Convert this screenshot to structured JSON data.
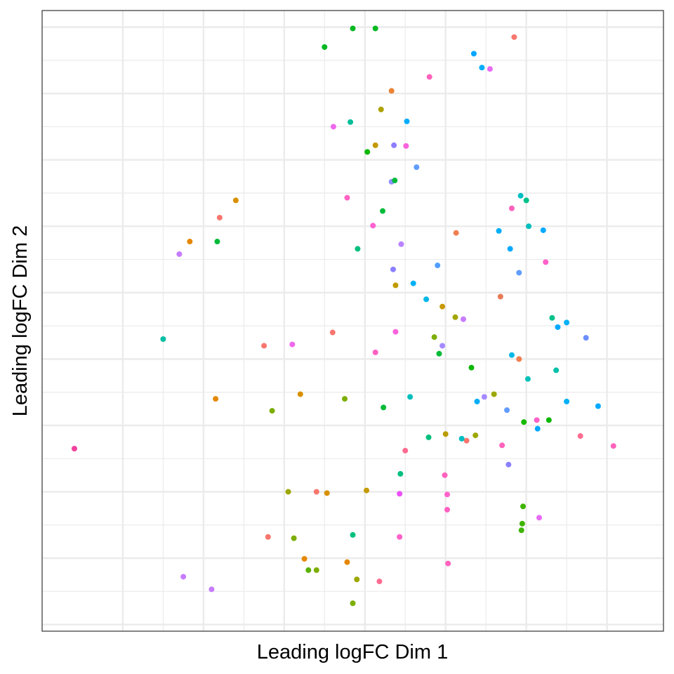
{
  "chart_data": {
    "type": "scatter",
    "title": "",
    "xlabel": "Leading logFC Dim 1",
    "ylabel": "Leading logFC Dim 2",
    "xlim": [
      -4.5,
      3.2
    ],
    "ylim": [
      -4.5,
      4.85
    ],
    "x_gridlines": [
      -3.5,
      -2.5,
      -1.5,
      -0.5,
      0.5,
      1.5,
      2.5
    ],
    "y_gridlines": [
      -4.4,
      -3.4,
      -2.4,
      -1.4,
      -0.4,
      0.6,
      1.6,
      2.6,
      3.6,
      4.6
    ],
    "grid": true,
    "legend": "none",
    "points": [
      {
        "x": -4.1,
        "y": -1.75,
        "color": "#F2429F"
      },
      {
        "x": -1.0,
        "y": 4.3,
        "color": "#00B81F"
      },
      {
        "x": -0.65,
        "y": 4.58,
        "color": "#00B81F"
      },
      {
        "x": -0.37,
        "y": 4.58,
        "color": "#00B81F"
      },
      {
        "x": 0.85,
        "y": 4.2,
        "color": "#00A5FF"
      },
      {
        "x": 0.95,
        "y": 3.99,
        "color": "#00ADFA"
      },
      {
        "x": 1.05,
        "y": 3.97,
        "color": "#E76BF3"
      },
      {
        "x": 1.35,
        "y": 4.45,
        "color": "#F8766D"
      },
      {
        "x": 0.3,
        "y": 3.85,
        "color": "#FF62BC"
      },
      {
        "x": -0.17,
        "y": 3.64,
        "color": "#EB8335"
      },
      {
        "x": -0.3,
        "y": 3.36,
        "color": "#AEA200"
      },
      {
        "x": -0.89,
        "y": 3.1,
        "color": "#EF67EB"
      },
      {
        "x": -0.68,
        "y": 3.17,
        "color": "#00BE99"
      },
      {
        "x": 0.02,
        "y": 3.18,
        "color": "#00ACFC"
      },
      {
        "x": -0.37,
        "y": 2.82,
        "color": "#C49A00"
      },
      {
        "x": -0.47,
        "y": 2.72,
        "color": "#0CB702"
      },
      {
        "x": -0.14,
        "y": 2.82,
        "color": "#8D7EFF"
      },
      {
        "x": 0.01,
        "y": 2.81,
        "color": "#F962DD"
      },
      {
        "x": 0.14,
        "y": 2.49,
        "color": "#619CFF"
      },
      {
        "x": -0.17,
        "y": 2.27,
        "color": "#8F91FF"
      },
      {
        "x": -0.13,
        "y": 2.29,
        "color": "#00BA38"
      },
      {
        "x": -0.72,
        "y": 2.03,
        "color": "#FF61C3"
      },
      {
        "x": -2.1,
        "y": 1.99,
        "color": "#D89000"
      },
      {
        "x": -2.3,
        "y": 1.73,
        "color": "#F8766D"
      },
      {
        "x": -0.28,
        "y": 1.83,
        "color": "#00BA38"
      },
      {
        "x": -0.4,
        "y": 1.61,
        "color": "#FD61D1"
      },
      {
        "x": -2.67,
        "y": 1.37,
        "color": "#E58700"
      },
      {
        "x": -2.33,
        "y": 1.37,
        "color": "#00BA38"
      },
      {
        "x": -2.8,
        "y": 1.18,
        "color": "#C77CFF"
      },
      {
        "x": -0.59,
        "y": 1.26,
        "color": "#00BF7D"
      },
      {
        "x": -0.05,
        "y": 1.33,
        "color": "#B983FF"
      },
      {
        "x": -0.15,
        "y": 0.95,
        "color": "#8B80FF"
      },
      {
        "x": -0.12,
        "y": 0.71,
        "color": "#C09B00"
      },
      {
        "x": 0.1,
        "y": 0.74,
        "color": "#00B0F6"
      },
      {
        "x": 1.43,
        "y": 2.06,
        "color": "#00BFC4"
      },
      {
        "x": 1.5,
        "y": 1.99,
        "color": "#00C08B"
      },
      {
        "x": 1.32,
        "y": 1.87,
        "color": "#FF62BC"
      },
      {
        "x": 0.63,
        "y": 1.5,
        "color": "#F17E4F"
      },
      {
        "x": 1.16,
        "y": 1.53,
        "color": "#00AEF4"
      },
      {
        "x": 1.53,
        "y": 1.6,
        "color": "#00BFBD"
      },
      {
        "x": 1.71,
        "y": 1.54,
        "color": "#00A9FF"
      },
      {
        "x": 1.74,
        "y": 1.06,
        "color": "#FF61C9"
      },
      {
        "x": 1.3,
        "y": 1.26,
        "color": "#00A9FF"
      },
      {
        "x": 0.4,
        "y": 1.01,
        "color": "#529EFF"
      },
      {
        "x": 1.41,
        "y": 0.9,
        "color": "#619CFF"
      },
      {
        "x": 0.26,
        "y": 0.5,
        "color": "#00B8E7"
      },
      {
        "x": 0.46,
        "y": 0.39,
        "color": "#C89900"
      },
      {
        "x": 0.62,
        "y": 0.23,
        "color": "#A3A500"
      },
      {
        "x": 0.72,
        "y": 0.2,
        "color": "#C77CFF"
      },
      {
        "x": 1.18,
        "y": 0.54,
        "color": "#E87B55"
      },
      {
        "x": 1.82,
        "y": 0.22,
        "color": "#00C08B"
      },
      {
        "x": 2.0,
        "y": 0.15,
        "color": "#00B0F6"
      },
      {
        "x": 1.89,
        "y": 0.08,
        "color": "#00A9FF"
      },
      {
        "x": 2.24,
        "y": -0.08,
        "color": "#6B8FFF"
      },
      {
        "x": 0.36,
        "y": -0.07,
        "color": "#7CAE00"
      },
      {
        "x": 0.42,
        "y": -0.32,
        "color": "#00BA38"
      },
      {
        "x": 0.46,
        "y": -0.2,
        "color": "#A58AFF"
      },
      {
        "x": -0.12,
        "y": 0.01,
        "color": "#F962DD"
      },
      {
        "x": -0.37,
        "y": -0.3,
        "color": "#FF61C3"
      },
      {
        "x": -1.75,
        "y": -0.2,
        "color": "#F8766D"
      },
      {
        "x": -1.4,
        "y": -0.18,
        "color": "#EF67EB"
      },
      {
        "x": -0.9,
        "y": 0.0,
        "color": "#F8766D"
      },
      {
        "x": -3.0,
        "y": -0.1,
        "color": "#00BFA4"
      },
      {
        "x": 0.82,
        "y": -0.53,
        "color": "#0CB702"
      },
      {
        "x": 1.32,
        "y": -0.34,
        "color": "#00B8E7"
      },
      {
        "x": 1.41,
        "y": -0.4,
        "color": "#F17E4F"
      },
      {
        "x": 1.52,
        "y": -0.7,
        "color": "#00C0B8"
      },
      {
        "x": 1.87,
        "y": -0.57,
        "color": "#00C1AA"
      },
      {
        "x": -2.35,
        "y": -1.0,
        "color": "#E58700"
      },
      {
        "x": -1.3,
        "y": -0.93,
        "color": "#D89000"
      },
      {
        "x": -0.75,
        "y": -1.0,
        "color": "#7CAE00"
      },
      {
        "x": -1.65,
        "y": -1.18,
        "color": "#7CAE00"
      },
      {
        "x": -0.27,
        "y": -1.13,
        "color": "#00BA38"
      },
      {
        "x": 0.06,
        "y": -0.97,
        "color": "#00BFBD"
      },
      {
        "x": 0.89,
        "y": -1.04,
        "color": "#00AEF4"
      },
      {
        "x": 0.98,
        "y": -0.97,
        "color": "#A58AFF"
      },
      {
        "x": 1.1,
        "y": -0.93,
        "color": "#9DA700"
      },
      {
        "x": 1.26,
        "y": -1.17,
        "color": "#619CFF"
      },
      {
        "x": 2.0,
        "y": -1.04,
        "color": "#00B0F6"
      },
      {
        "x": 2.39,
        "y": -1.11,
        "color": "#00A9FF"
      },
      {
        "x": 1.47,
        "y": -1.35,
        "color": "#16BA00"
      },
      {
        "x": 1.63,
        "y": -1.32,
        "color": "#FF61C9"
      },
      {
        "x": 1.78,
        "y": -1.32,
        "color": "#0CB702"
      },
      {
        "x": 1.64,
        "y": -1.45,
        "color": "#00A9FF"
      },
      {
        "x": 2.17,
        "y": -1.56,
        "color": "#FF6C91"
      },
      {
        "x": 2.58,
        "y": -1.71,
        "color": "#FF62BC"
      },
      {
        "x": 0.0,
        "y": -1.78,
        "color": "#FF6C91"
      },
      {
        "x": 0.29,
        "y": -1.58,
        "color": "#00BF7D"
      },
      {
        "x": 0.5,
        "y": -1.53,
        "color": "#B99B00"
      },
      {
        "x": 0.87,
        "y": -1.55,
        "color": "#9DA700"
      },
      {
        "x": 0.7,
        "y": -1.6,
        "color": "#00BFC4"
      },
      {
        "x": 0.76,
        "y": -1.63,
        "color": "#F8766D"
      },
      {
        "x": 1.2,
        "y": -1.7,
        "color": "#FF62BC"
      },
      {
        "x": 1.28,
        "y": -1.99,
        "color": "#8B80FF"
      },
      {
        "x": -0.06,
        "y": -2.13,
        "color": "#00BF7D"
      },
      {
        "x": 0.49,
        "y": -2.15,
        "color": "#FF62BC"
      },
      {
        "x": -1.45,
        "y": -2.4,
        "color": "#9DA700"
      },
      {
        "x": -1.1,
        "y": -2.4,
        "color": "#F8766D"
      },
      {
        "x": -0.97,
        "y": -2.42,
        "color": "#D89000"
      },
      {
        "x": -0.48,
        "y": -2.38,
        "color": "#C49A00"
      },
      {
        "x": -0.07,
        "y": -2.43,
        "color": "#EB4FF7"
      },
      {
        "x": 0.52,
        "y": -2.44,
        "color": "#FF61C9"
      },
      {
        "x": 1.46,
        "y": -2.62,
        "color": "#3EB400"
      },
      {
        "x": 1.66,
        "y": -2.79,
        "color": "#E76BF3"
      },
      {
        "x": 0.52,
        "y": -2.67,
        "color": "#FF61C3"
      },
      {
        "x": 1.45,
        "y": -2.88,
        "color": "#3EB400"
      },
      {
        "x": 1.44,
        "y": -2.98,
        "color": "#3EB400"
      },
      {
        "x": -1.7,
        "y": -3.08,
        "color": "#F8766D"
      },
      {
        "x": -1.38,
        "y": -3.1,
        "color": "#7CAE00"
      },
      {
        "x": -0.65,
        "y": -3.05,
        "color": "#00BF7D"
      },
      {
        "x": -0.07,
        "y": -3.08,
        "color": "#FF61C9"
      },
      {
        "x": -1.25,
        "y": -3.41,
        "color": "#E58700"
      },
      {
        "x": -0.72,
        "y": -3.46,
        "color": "#E58700"
      },
      {
        "x": 0.53,
        "y": -3.48,
        "color": "#FF62BC"
      },
      {
        "x": -1.2,
        "y": -3.58,
        "color": "#5AB000"
      },
      {
        "x": -1.1,
        "y": -3.58,
        "color": "#7CAE00"
      },
      {
        "x": -2.75,
        "y": -3.68,
        "color": "#C77CFF"
      },
      {
        "x": -2.4,
        "y": -3.87,
        "color": "#C77CFF"
      },
      {
        "x": -0.6,
        "y": -3.72,
        "color": "#9DA700"
      },
      {
        "x": -0.32,
        "y": -3.75,
        "color": "#FF6C91"
      },
      {
        "x": -0.65,
        "y": -4.08,
        "color": "#7CAE00"
      }
    ]
  }
}
